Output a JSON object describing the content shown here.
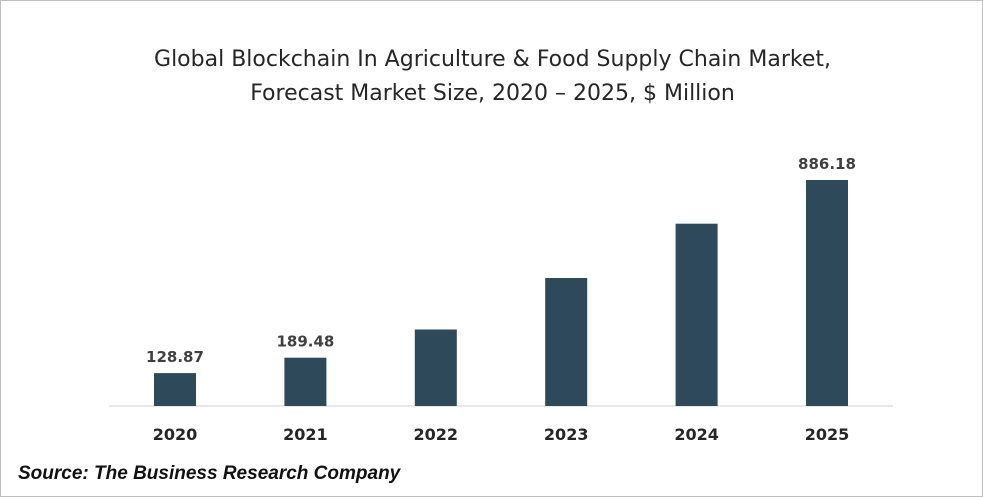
{
  "chart_data": {
    "type": "bar",
    "title_line1": "Global Blockchain In Agriculture & Food Supply Chain Market,",
    "title_line2": "Forecast Market Size, 2020 – 2025, $ Million",
    "categories": [
      "2020",
      "2021",
      "2022",
      "2023",
      "2024",
      "2025"
    ],
    "values": [
      128.87,
      189.48,
      300,
      502,
      715,
      886.18
    ],
    "data_labels": [
      "128.87",
      "189.48",
      "",
      "",
      "",
      "886.18"
    ],
    "bar_color": "#2e4a5a",
    "ylim": [
      0,
      1000
    ],
    "grid": false,
    "legend": "none"
  },
  "source": "Source: The Business Research Company"
}
